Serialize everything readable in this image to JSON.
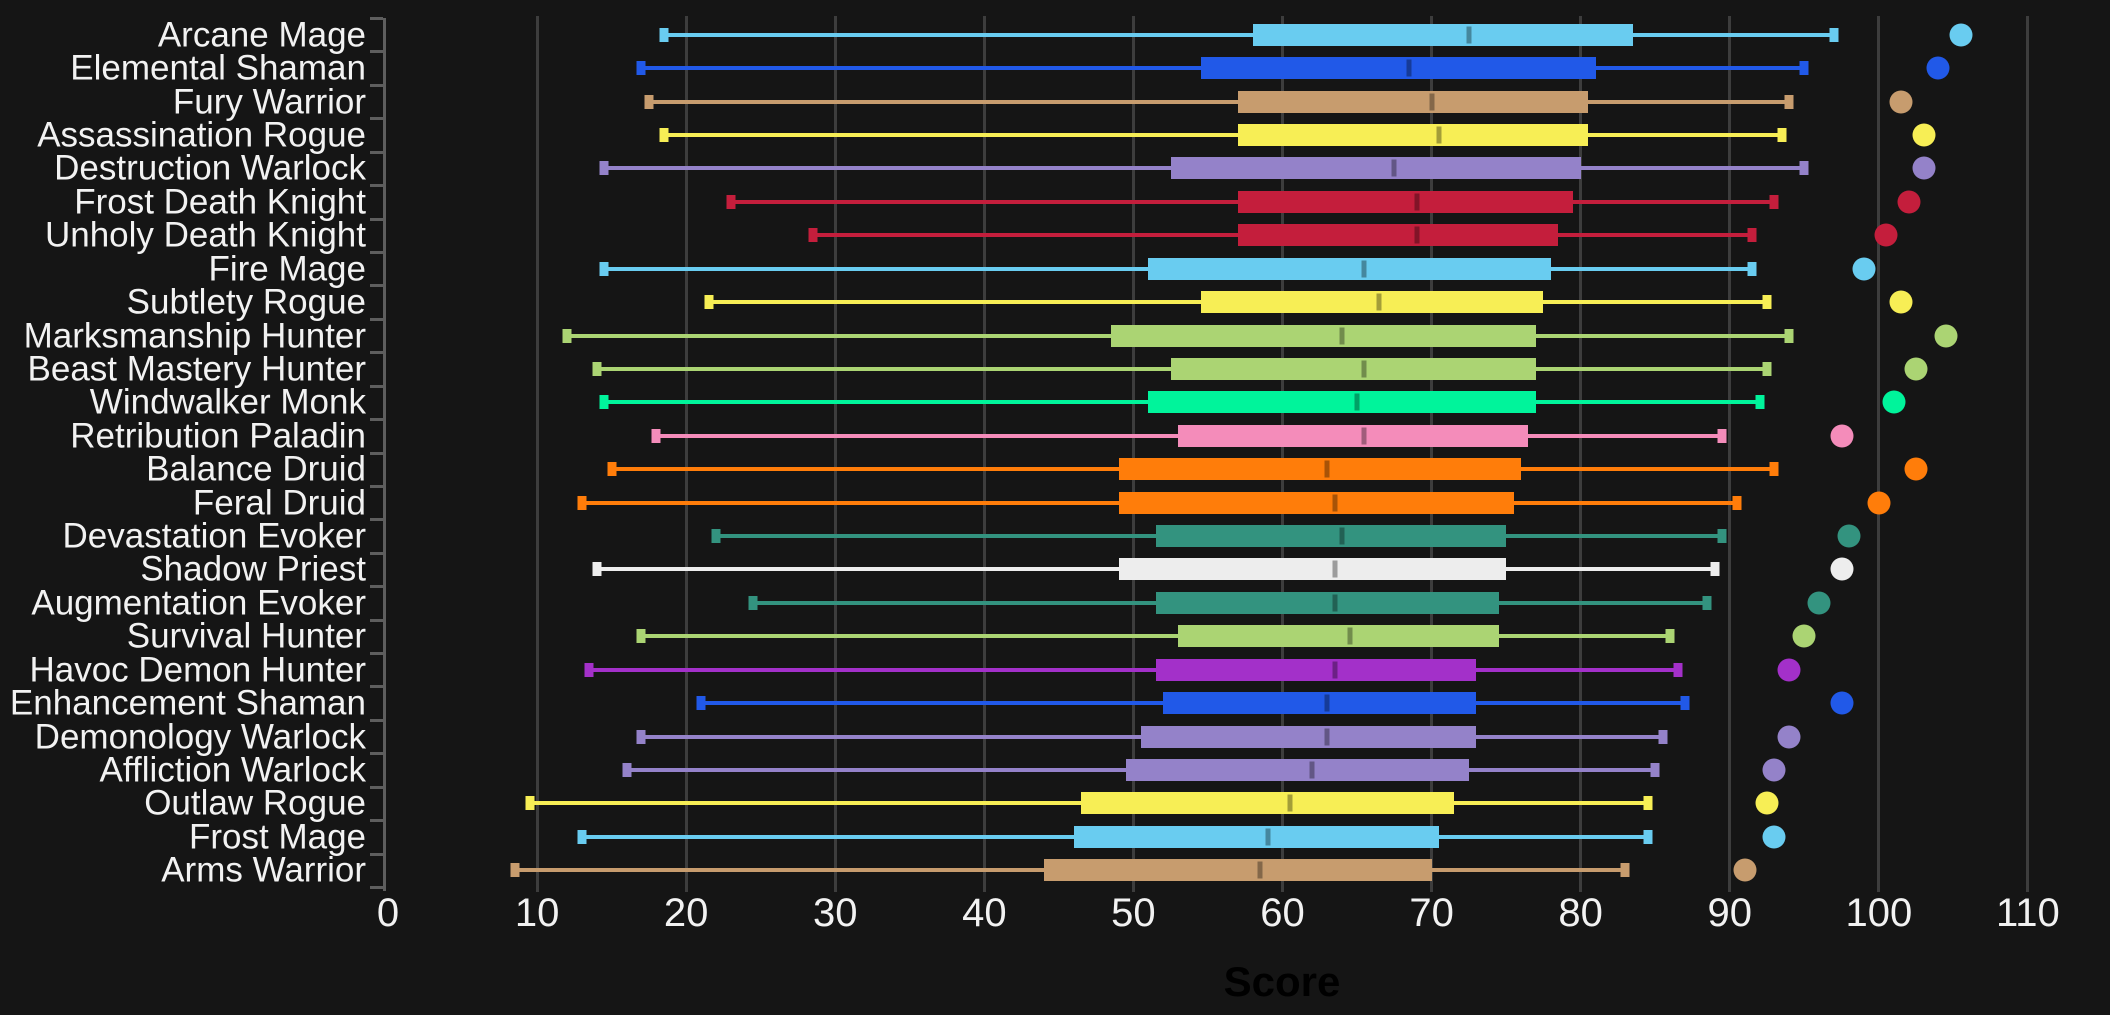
{
  "chart_data": {
    "type": "boxplot-horizontal",
    "title": "",
    "xlabel": "Score",
    "xlim": [
      0,
      114.5
    ],
    "xticks": [
      0,
      10,
      20,
      30,
      40,
      50,
      60,
      70,
      80,
      90,
      100,
      110
    ],
    "grid": true,
    "background_color": "#151515",
    "grid_color": "#3d3d3d",
    "axis_color": "#5e5e5e",
    "text_color": "#f2f2f2",
    "categories": [
      "Arcane Mage",
      "Elemental Shaman",
      "Fury Warrior",
      "Assassination Rogue",
      "Destruction Warlock",
      "Frost Death Knight",
      "Unholy Death Knight",
      "Fire Mage",
      "Subtlety Rogue",
      "Marksmanship Hunter",
      "Beast Mastery Hunter",
      "Windwalker Monk",
      "Retribution Paladin",
      "Balance Druid",
      "Feral Druid",
      "Devastation Evoker",
      "Shadow Priest",
      "Augmentation Evoker",
      "Survival Hunter",
      "Havoc Demon Hunter",
      "Enhancement Shaman",
      "Demonology Warlock",
      "Affliction Warlock",
      "Outlaw Rogue",
      "Frost Mage",
      "Arms Warrior"
    ],
    "series": [
      {
        "label": "Arcane Mage",
        "color": "#69CCF0",
        "min": 18.5,
        "q1": 58,
        "median": 72.5,
        "q3": 83.5,
        "max": 97,
        "point": 105.5
      },
      {
        "label": "Elemental Shaman",
        "color": "#2159E8",
        "min": 17,
        "q1": 54.5,
        "median": 68.5,
        "q3": 81,
        "max": 95,
        "point": 104
      },
      {
        "label": "Fury Warrior",
        "color": "#C79C6E",
        "min": 17.5,
        "q1": 57,
        "median": 70,
        "q3": 80.5,
        "max": 94,
        "point": 101.5
      },
      {
        "label": "Assassination Rogue",
        "color": "#F7EE55",
        "min": 18.5,
        "q1": 57,
        "median": 70.5,
        "q3": 80.5,
        "max": 93.5,
        "point": 103
      },
      {
        "label": "Destruction Warlock",
        "color": "#9482C9",
        "min": 14.5,
        "q1": 52.5,
        "median": 67.5,
        "q3": 80,
        "max": 95,
        "point": 103
      },
      {
        "label": "Frost Death Knight",
        "color": "#C41E3C",
        "min": 23,
        "q1": 57,
        "median": 69,
        "q3": 79.5,
        "max": 93,
        "point": 102
      },
      {
        "label": "Unholy Death Knight",
        "color": "#C41E3C",
        "min": 28.5,
        "q1": 57,
        "median": 69,
        "q3": 78.5,
        "max": 91.5,
        "point": 100.5
      },
      {
        "label": "Fire Mage",
        "color": "#69CCF0",
        "min": 14.5,
        "q1": 51,
        "median": 65.5,
        "q3": 78,
        "max": 91.5,
        "point": 99
      },
      {
        "label": "Subtlety Rogue",
        "color": "#F7EE55",
        "min": 21.5,
        "q1": 54.5,
        "median": 66.5,
        "q3": 77.5,
        "max": 92.5,
        "point": 101.5
      },
      {
        "label": "Marksmanship Hunter",
        "color": "#ABD473",
        "min": 12,
        "q1": 48.5,
        "median": 64,
        "q3": 77,
        "max": 94,
        "point": 104.5
      },
      {
        "label": "Beast Mastery Hunter",
        "color": "#ABD473",
        "min": 14,
        "q1": 52.5,
        "median": 65.5,
        "q3": 77,
        "max": 92.5,
        "point": 102.5
      },
      {
        "label": "Windwalker Monk",
        "color": "#00F49B",
        "min": 14.5,
        "q1": 51,
        "median": 65,
        "q3": 77,
        "max": 92,
        "point": 101
      },
      {
        "label": "Retribution Paladin",
        "color": "#F48CBA",
        "min": 18,
        "q1": 53,
        "median": 65.5,
        "q3": 76.5,
        "max": 89.5,
        "point": 97.5
      },
      {
        "label": "Balance Druid",
        "color": "#FF7D0A",
        "min": 15,
        "q1": 49,
        "median": 63,
        "q3": 76,
        "max": 93,
        "point": 102.5
      },
      {
        "label": "Feral Druid",
        "color": "#FF7D0A",
        "min": 13,
        "q1": 49,
        "median": 63.5,
        "q3": 75.5,
        "max": 90.5,
        "point": 100
      },
      {
        "label": "Devastation Evoker",
        "color": "#33937F",
        "min": 22,
        "q1": 51.5,
        "median": 64,
        "q3": 75,
        "max": 89.5,
        "point": 98
      },
      {
        "label": "Shadow Priest",
        "color": "#EDEDED",
        "min": 14,
        "q1": 49,
        "median": 63.5,
        "q3": 75,
        "max": 89,
        "point": 97.5
      },
      {
        "label": "Augmentation Evoker",
        "color": "#33937F",
        "min": 24.5,
        "q1": 51.5,
        "median": 63.5,
        "q3": 74.5,
        "max": 88.5,
        "point": 96
      },
      {
        "label": "Survival Hunter",
        "color": "#ABD473",
        "min": 17,
        "q1": 53,
        "median": 64.5,
        "q3": 74.5,
        "max": 86,
        "point": 95
      },
      {
        "label": "Havoc Demon Hunter",
        "color": "#A330C9",
        "min": 13.5,
        "q1": 51.5,
        "median": 63.5,
        "q3": 73,
        "max": 86.5,
        "point": 94
      },
      {
        "label": "Enhancement Shaman",
        "color": "#2159E8",
        "min": 21,
        "q1": 52,
        "median": 63,
        "q3": 73,
        "max": 87,
        "point": 97.5
      },
      {
        "label": "Demonology Warlock",
        "color": "#9482C9",
        "min": 17,
        "q1": 50.5,
        "median": 63,
        "q3": 73,
        "max": 85.5,
        "point": 94
      },
      {
        "label": "Affliction Warlock",
        "color": "#9482C9",
        "min": 16,
        "q1": 49.5,
        "median": 62,
        "q3": 72.5,
        "max": 85,
        "point": 93
      },
      {
        "label": "Outlaw Rogue",
        "color": "#F7EE55",
        "min": 9.5,
        "q1": 46.5,
        "median": 60.5,
        "q3": 71.5,
        "max": 84.5,
        "point": 92.5
      },
      {
        "label": "Frost Mage",
        "color": "#69CCF0",
        "min": 13,
        "q1": 46,
        "median": 59,
        "q3": 70.5,
        "max": 84.5,
        "point": 93
      },
      {
        "label": "Arms Warrior",
        "color": "#C79C6E",
        "min": 8.5,
        "q1": 44,
        "median": 58.5,
        "q3": 70,
        "max": 83,
        "point": 91
      }
    ]
  }
}
